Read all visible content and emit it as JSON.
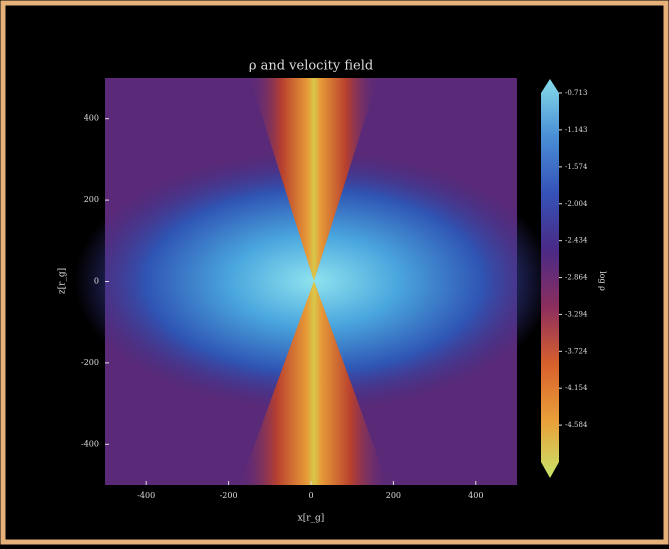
{
  "chart_data": {
    "type": "image",
    "title": "ρ and velocity field",
    "x_label": "x[r_g]",
    "y_label": "z[r_g]",
    "xlim": [
      -500,
      500
    ],
    "ylim": [
      -500,
      500
    ],
    "xticks": [
      -400,
      -200,
      0,
      200,
      400
    ],
    "yticks": [
      -400,
      -200,
      0,
      200,
      400
    ],
    "colorbar": {
      "label": "log ρ",
      "clim": [
        -5.014,
        -0.713
      ],
      "ticks": [
        -0.713,
        -1.143,
        -1.574,
        -2.004,
        -2.434,
        -2.864,
        -3.294,
        -3.724,
        -4.154,
        -4.584
      ],
      "colors": [
        "#c9e46a",
        "#e9a03a",
        "#d8602c",
        "#8c2e5e",
        "#4a2a86",
        "#3552b8",
        "#4a8fd6",
        "#86dcea"
      ]
    }
  }
}
